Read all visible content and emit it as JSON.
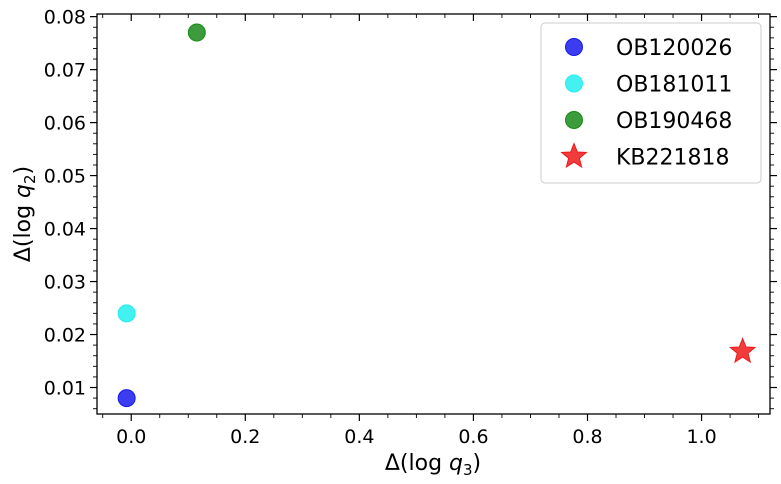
{
  "chart_data": {
    "type": "scatter",
    "xlabel": "Δ(log q3)",
    "ylabel": "Δ(log q2)",
    "xlim": [
      -0.06,
      1.12
    ],
    "ylim": [
      0.005,
      0.0805
    ],
    "x_ticks": [
      0.0,
      0.2,
      0.4,
      0.6,
      0.8,
      1.0
    ],
    "x_tick_labels": [
      "0.0",
      "0.2",
      "0.4",
      "0.6",
      "0.8",
      "1.0"
    ],
    "y_ticks": [
      0.01,
      0.02,
      0.03,
      0.04,
      0.05,
      0.06,
      0.07,
      0.08
    ],
    "y_tick_labels": [
      "0.01",
      "0.02",
      "0.03",
      "0.04",
      "0.05",
      "0.06",
      "0.07",
      "0.08"
    ],
    "grid": false,
    "legend_position": "top-right",
    "series": [
      {
        "name": "OB120026",
        "marker": "circle",
        "color": "#1a1aee",
        "points": [
          {
            "x": -0.008,
            "y": 0.008
          }
        ]
      },
      {
        "name": "OB181011",
        "marker": "circle",
        "color": "#22eeee",
        "points": [
          {
            "x": -0.008,
            "y": 0.024
          }
        ]
      },
      {
        "name": "OB190468",
        "marker": "circle",
        "color": "#1a8a1a",
        "points": [
          {
            "x": 0.115,
            "y": 0.077
          }
        ]
      },
      {
        "name": "KB221818",
        "marker": "star",
        "color": "#ee1a1a",
        "points": [
          {
            "x": 1.072,
            "y": 0.0168
          }
        ]
      }
    ]
  }
}
